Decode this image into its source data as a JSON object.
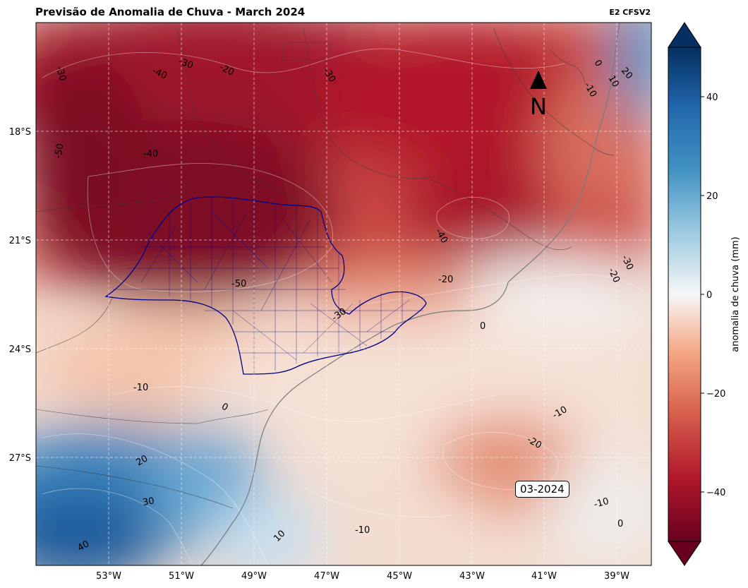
{
  "header": {
    "title": "Previsão de Anomalia de Chuva - March 2024",
    "model_label": "E2 CFSV2"
  },
  "map": {
    "date_label": "03-2024",
    "north_arrow_label": "N",
    "lat_labels": [
      "18°S",
      "21°S",
      "24°S",
      "27°S"
    ],
    "lon_labels": [
      "53°W",
      "51°W",
      "49°W",
      "47°W",
      "45°W",
      "43°W",
      "41°W",
      "39°W"
    ],
    "contour_labels": [
      "-30",
      "-40",
      "-30",
      "-20",
      "-30",
      "0",
      "20",
      "10",
      "-10",
      "-50",
      "-40",
      "-40",
      "-30",
      "-20",
      "-50",
      "-20",
      "-30",
      "0",
      "-10",
      "0",
      "20",
      "30",
      "40",
      "10",
      "-10",
      "-10",
      "-20",
      "-10",
      "0"
    ],
    "colors": {
      "strong_negative": "#67001f",
      "negative": "#b2182b",
      "moderate_negative": "#d6604d",
      "weak_negative": "#f4a582",
      "near_zero": "#f7f7f7",
      "weak_positive": "#92c5de",
      "positive": "#4393c3",
      "strong_positive": "#053061",
      "state_outline": "#00008b"
    }
  },
  "colorbar": {
    "label": "anomalia de chuva (mm)",
    "ticks": [
      "40",
      "20",
      "0",
      "−20",
      "−40"
    ],
    "range": [
      -50,
      50
    ],
    "tick_values": [
      40,
      20,
      0,
      -20,
      -40
    ]
  }
}
